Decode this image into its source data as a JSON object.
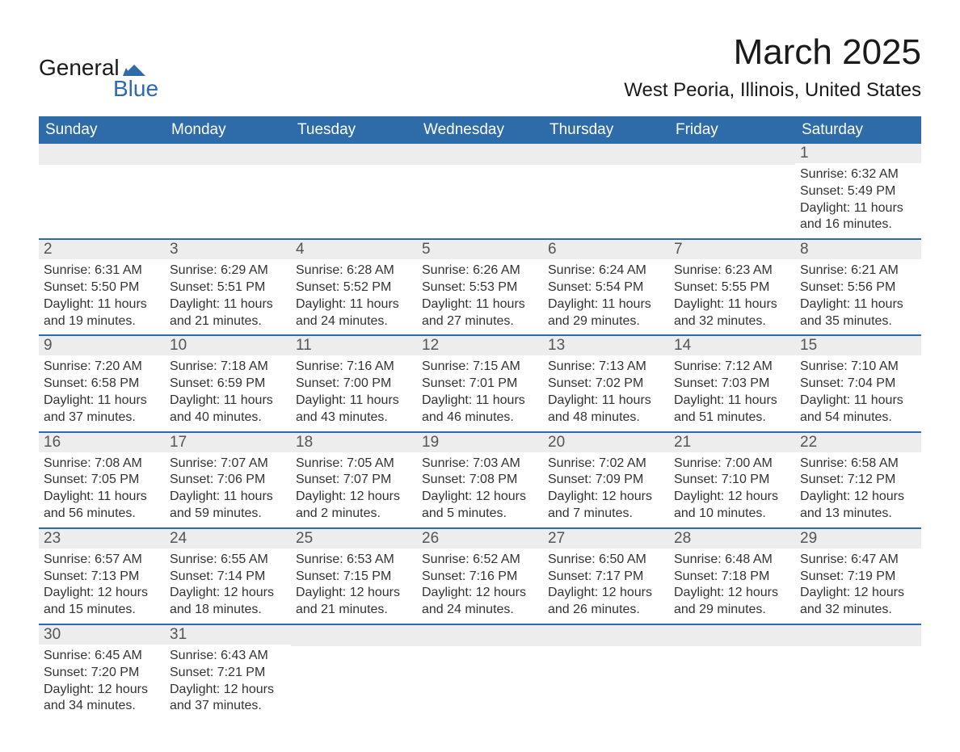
{
  "logo": {
    "text_top": "General",
    "text_bottom": "Blue",
    "flag_color": "#2d6ca9"
  },
  "title": "March 2025",
  "location": "West Peoria, Illinois, United States",
  "colors": {
    "header_bg": "#2d6ca9",
    "header_text": "#ffffff",
    "daynum_bg": "#ededed",
    "daynum_text": "#555555",
    "body_text": "#333333",
    "row_border": "#2d6ca9",
    "page_bg": "#ffffff"
  },
  "typography": {
    "title_fontsize": 44,
    "location_fontsize": 24,
    "dow_fontsize": 19,
    "daynum_fontsize": 19,
    "body_fontsize": 16,
    "font_family": "Arial"
  },
  "days_of_week": [
    "Sunday",
    "Monday",
    "Tuesday",
    "Wednesday",
    "Thursday",
    "Friday",
    "Saturday"
  ],
  "weeks": [
    [
      {
        "n": "",
        "sr": "",
        "ss": "",
        "d1": "",
        "d2": ""
      },
      {
        "n": "",
        "sr": "",
        "ss": "",
        "d1": "",
        "d2": ""
      },
      {
        "n": "",
        "sr": "",
        "ss": "",
        "d1": "",
        "d2": ""
      },
      {
        "n": "",
        "sr": "",
        "ss": "",
        "d1": "",
        "d2": ""
      },
      {
        "n": "",
        "sr": "",
        "ss": "",
        "d1": "",
        "d2": ""
      },
      {
        "n": "",
        "sr": "",
        "ss": "",
        "d1": "",
        "d2": ""
      },
      {
        "n": "1",
        "sr": "Sunrise: 6:32 AM",
        "ss": "Sunset: 5:49 PM",
        "d1": "Daylight: 11 hours",
        "d2": "and 16 minutes."
      }
    ],
    [
      {
        "n": "2",
        "sr": "Sunrise: 6:31 AM",
        "ss": "Sunset: 5:50 PM",
        "d1": "Daylight: 11 hours",
        "d2": "and 19 minutes."
      },
      {
        "n": "3",
        "sr": "Sunrise: 6:29 AM",
        "ss": "Sunset: 5:51 PM",
        "d1": "Daylight: 11 hours",
        "d2": "and 21 minutes."
      },
      {
        "n": "4",
        "sr": "Sunrise: 6:28 AM",
        "ss": "Sunset: 5:52 PM",
        "d1": "Daylight: 11 hours",
        "d2": "and 24 minutes."
      },
      {
        "n": "5",
        "sr": "Sunrise: 6:26 AM",
        "ss": "Sunset: 5:53 PM",
        "d1": "Daylight: 11 hours",
        "d2": "and 27 minutes."
      },
      {
        "n": "6",
        "sr": "Sunrise: 6:24 AM",
        "ss": "Sunset: 5:54 PM",
        "d1": "Daylight: 11 hours",
        "d2": "and 29 minutes."
      },
      {
        "n": "7",
        "sr": "Sunrise: 6:23 AM",
        "ss": "Sunset: 5:55 PM",
        "d1": "Daylight: 11 hours",
        "d2": "and 32 minutes."
      },
      {
        "n": "8",
        "sr": "Sunrise: 6:21 AM",
        "ss": "Sunset: 5:56 PM",
        "d1": "Daylight: 11 hours",
        "d2": "and 35 minutes."
      }
    ],
    [
      {
        "n": "9",
        "sr": "Sunrise: 7:20 AM",
        "ss": "Sunset: 6:58 PM",
        "d1": "Daylight: 11 hours",
        "d2": "and 37 minutes."
      },
      {
        "n": "10",
        "sr": "Sunrise: 7:18 AM",
        "ss": "Sunset: 6:59 PM",
        "d1": "Daylight: 11 hours",
        "d2": "and 40 minutes."
      },
      {
        "n": "11",
        "sr": "Sunrise: 7:16 AM",
        "ss": "Sunset: 7:00 PM",
        "d1": "Daylight: 11 hours",
        "d2": "and 43 minutes."
      },
      {
        "n": "12",
        "sr": "Sunrise: 7:15 AM",
        "ss": "Sunset: 7:01 PM",
        "d1": "Daylight: 11 hours",
        "d2": "and 46 minutes."
      },
      {
        "n": "13",
        "sr": "Sunrise: 7:13 AM",
        "ss": "Sunset: 7:02 PM",
        "d1": "Daylight: 11 hours",
        "d2": "and 48 minutes."
      },
      {
        "n": "14",
        "sr": "Sunrise: 7:12 AM",
        "ss": "Sunset: 7:03 PM",
        "d1": "Daylight: 11 hours",
        "d2": "and 51 minutes."
      },
      {
        "n": "15",
        "sr": "Sunrise: 7:10 AM",
        "ss": "Sunset: 7:04 PM",
        "d1": "Daylight: 11 hours",
        "d2": "and 54 minutes."
      }
    ],
    [
      {
        "n": "16",
        "sr": "Sunrise: 7:08 AM",
        "ss": "Sunset: 7:05 PM",
        "d1": "Daylight: 11 hours",
        "d2": "and 56 minutes."
      },
      {
        "n": "17",
        "sr": "Sunrise: 7:07 AM",
        "ss": "Sunset: 7:06 PM",
        "d1": "Daylight: 11 hours",
        "d2": "and 59 minutes."
      },
      {
        "n": "18",
        "sr": "Sunrise: 7:05 AM",
        "ss": "Sunset: 7:07 PM",
        "d1": "Daylight: 12 hours",
        "d2": "and 2 minutes."
      },
      {
        "n": "19",
        "sr": "Sunrise: 7:03 AM",
        "ss": "Sunset: 7:08 PM",
        "d1": "Daylight: 12 hours",
        "d2": "and 5 minutes."
      },
      {
        "n": "20",
        "sr": "Sunrise: 7:02 AM",
        "ss": "Sunset: 7:09 PM",
        "d1": "Daylight: 12 hours",
        "d2": "and 7 minutes."
      },
      {
        "n": "21",
        "sr": "Sunrise: 7:00 AM",
        "ss": "Sunset: 7:10 PM",
        "d1": "Daylight: 12 hours",
        "d2": "and 10 minutes."
      },
      {
        "n": "22",
        "sr": "Sunrise: 6:58 AM",
        "ss": "Sunset: 7:12 PM",
        "d1": "Daylight: 12 hours",
        "d2": "and 13 minutes."
      }
    ],
    [
      {
        "n": "23",
        "sr": "Sunrise: 6:57 AM",
        "ss": "Sunset: 7:13 PM",
        "d1": "Daylight: 12 hours",
        "d2": "and 15 minutes."
      },
      {
        "n": "24",
        "sr": "Sunrise: 6:55 AM",
        "ss": "Sunset: 7:14 PM",
        "d1": "Daylight: 12 hours",
        "d2": "and 18 minutes."
      },
      {
        "n": "25",
        "sr": "Sunrise: 6:53 AM",
        "ss": "Sunset: 7:15 PM",
        "d1": "Daylight: 12 hours",
        "d2": "and 21 minutes."
      },
      {
        "n": "26",
        "sr": "Sunrise: 6:52 AM",
        "ss": "Sunset: 7:16 PM",
        "d1": "Daylight: 12 hours",
        "d2": "and 24 minutes."
      },
      {
        "n": "27",
        "sr": "Sunrise: 6:50 AM",
        "ss": "Sunset: 7:17 PM",
        "d1": "Daylight: 12 hours",
        "d2": "and 26 minutes."
      },
      {
        "n": "28",
        "sr": "Sunrise: 6:48 AM",
        "ss": "Sunset: 7:18 PM",
        "d1": "Daylight: 12 hours",
        "d2": "and 29 minutes."
      },
      {
        "n": "29",
        "sr": "Sunrise: 6:47 AM",
        "ss": "Sunset: 7:19 PM",
        "d1": "Daylight: 12 hours",
        "d2": "and 32 minutes."
      }
    ],
    [
      {
        "n": "30",
        "sr": "Sunrise: 6:45 AM",
        "ss": "Sunset: 7:20 PM",
        "d1": "Daylight: 12 hours",
        "d2": "and 34 minutes."
      },
      {
        "n": "31",
        "sr": "Sunrise: 6:43 AM",
        "ss": "Sunset: 7:21 PM",
        "d1": "Daylight: 12 hours",
        "d2": "and 37 minutes."
      },
      {
        "n": "",
        "sr": "",
        "ss": "",
        "d1": "",
        "d2": ""
      },
      {
        "n": "",
        "sr": "",
        "ss": "",
        "d1": "",
        "d2": ""
      },
      {
        "n": "",
        "sr": "",
        "ss": "",
        "d1": "",
        "d2": ""
      },
      {
        "n": "",
        "sr": "",
        "ss": "",
        "d1": "",
        "d2": ""
      },
      {
        "n": "",
        "sr": "",
        "ss": "",
        "d1": "",
        "d2": ""
      }
    ]
  ]
}
